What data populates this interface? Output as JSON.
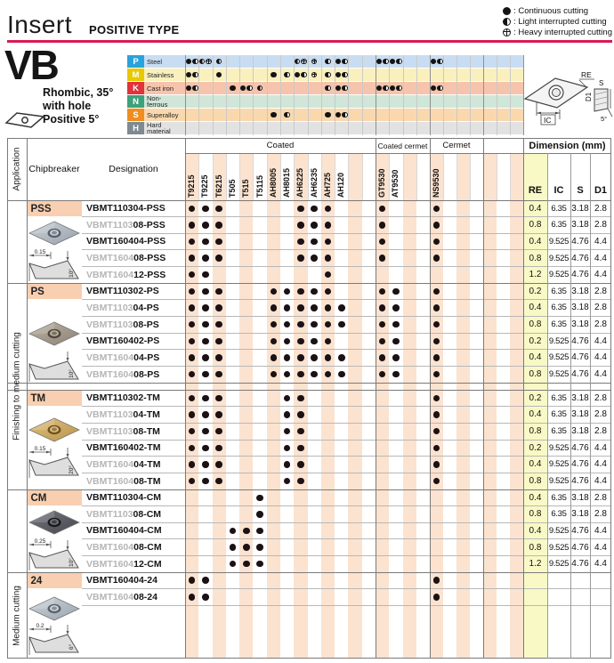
{
  "page": {
    "title": "Insert",
    "subtitle": "POSITIVE TYPE",
    "legend": [
      {
        "symbol": "f",
        "label": ": Continuous cutting"
      },
      {
        "symbol": "c",
        "label": ": Light interrupted cutting"
      },
      {
        "symbol": "h",
        "label": ": Heavy interrupted cutting"
      }
    ]
  },
  "colors": {
    "accent": "#d81b54",
    "stripe": "#fbe3d0",
    "section_cell": "#f8cfb0",
    "re_column": "#f9f9c6",
    "dot": "#1a1215"
  },
  "product": {
    "code": "VB",
    "shape_desc": [
      "Rhombic, 35°",
      "with hole",
      "Positive 5°"
    ]
  },
  "materials": {
    "rows": [
      {
        "code": "P",
        "name": "Steel",
        "badge_color": "#29a3dc",
        "row_color": "#c9ddf2",
        "marks": {
          "0": "fc",
          "1": "ch",
          "2": "c",
          "8": "ch",
          "9": "h",
          "10": "c",
          "11": "fc",
          "14": "fc",
          "15": "fc",
          "18": "fc"
        }
      },
      {
        "code": "M",
        "name": "Stainless",
        "badge_color": "#e8c800",
        "row_color": "#faf0bd",
        "marks": {
          "0": "fc",
          "2": "f",
          "6": "f",
          "7": "c",
          "8": "fc",
          "9": "h",
          "10": "c",
          "11": "fc"
        }
      },
      {
        "code": "K",
        "name": "Cast iron",
        "badge_color": "#e0333c",
        "row_color": "#f6c4ac",
        "marks": {
          "0": "fc",
          "3": "f",
          "4": "fc",
          "5": "c",
          "10": "c",
          "11": "fc",
          "14": "fc",
          "15": "fc",
          "18": "fc"
        }
      },
      {
        "code": "N",
        "name": "Non-\nferrous",
        "badge_color": "#3da17c",
        "row_color": "#cfe6d8",
        "marks": {}
      },
      {
        "code": "S",
        "name": "Superalloy",
        "badge_color": "#ef8e1f",
        "row_color": "#fad8ae",
        "marks": {
          "6": "f",
          "7": "c",
          "10": "f",
          "11": "fc"
        }
      },
      {
        "code": "H",
        "name": "Hard\nmaterial",
        "badge_color": "#7e8a92",
        "row_color": "#e2e2e2",
        "marks": {}
      }
    ]
  },
  "grades": {
    "groups": [
      {
        "label": "Coated",
        "span": 14
      },
      {
        "label": "Coated cermet",
        "span": 4
      },
      {
        "label": "Cermet",
        "span": 4
      },
      {
        "label": "",
        "span": 3
      }
    ],
    "columns": [
      "T9215",
      "T9225",
      "T6215",
      "T505",
      "T515",
      "T5115",
      "AH8005",
      "AH8015",
      "AH6225",
      "AH6235",
      "AH725",
      "AH120",
      "",
      "",
      "GT9530",
      "AT9530",
      "",
      "",
      "NS9530",
      "",
      "",
      "",
      "",
      "",
      ""
    ]
  },
  "dimension": {
    "label": "Dimension (mm)",
    "headers": [
      "RE",
      "IC",
      "S",
      "D1"
    ]
  },
  "table": {
    "application_header": "Application",
    "chipbreaker_header": "Chipbreaker",
    "designation_header": "Designation",
    "applications": [
      {
        "label": "Finishing to medium cutting",
        "section_span": [
          0,
          3
        ]
      },
      {
        "label": "Medium cutting",
        "section_span": [
          4,
          4
        ]
      }
    ],
    "sections": [
      {
        "name": "PSS",
        "profile": {
          "dim": "0.15",
          "angle": "10°"
        },
        "photo": {
          "base": "#97a0aa",
          "light": "#ccd3da",
          "dark": "#58606a"
        },
        "rows": [
          {
            "pre": "",
            "suf": "VBMT110304-PSS",
            "dots": [
              0,
              1,
              2,
              8,
              9,
              10,
              14,
              18
            ],
            "dims": [
              "0.4",
              "6.35",
              "3.18",
              "2.8"
            ]
          },
          {
            "pre": "VBMT1103",
            "suf": "08-PSS",
            "dots": [
              0,
              1,
              2,
              8,
              9,
              10,
              14,
              18
            ],
            "dims": [
              "0.8",
              "6.35",
              "3.18",
              "2.8"
            ]
          },
          {
            "pre": "",
            "suf": "VBMT160404-PSS",
            "dots": [
              0,
              1,
              2,
              8,
              9,
              10,
              14,
              18
            ],
            "dims": [
              "0.4",
              "9.525",
              "4.76",
              "4.4"
            ]
          },
          {
            "pre": "VBMT1604",
            "suf": "08-PSS",
            "dots": [
              0,
              1,
              2,
              8,
              9,
              10,
              14,
              18
            ],
            "dims": [
              "0.8",
              "9.525",
              "4.76",
              "4.4"
            ]
          },
          {
            "pre": "VBMT1604",
            "suf": "12-PSS",
            "dots": [
              0,
              1,
              10
            ],
            "dims": [
              "1.2",
              "9.525",
              "4.76",
              "4.4"
            ]
          }
        ]
      },
      {
        "name": "PS",
        "profile": {
          "dim": "",
          "angle": "10°"
        },
        "photo": {
          "base": "#8a8174",
          "light": "#beb4a4",
          "dark": "#4e463c"
        },
        "rows": [
          {
            "pre": "",
            "suf": "VBMT110302-PS",
            "dots": [
              0,
              1,
              2,
              6,
              7,
              8,
              9,
              10,
              14,
              15,
              18
            ],
            "dims": [
              "0.2",
              "6.35",
              "3.18",
              "2.8"
            ]
          },
          {
            "pre": "VBMT1103",
            "suf": "04-PS",
            "dots": [
              0,
              1,
              2,
              6,
              7,
              8,
              9,
              10,
              11,
              14,
              15,
              18
            ],
            "dims": [
              "0.4",
              "6.35",
              "3.18",
              "2.8"
            ]
          },
          {
            "pre": "VBMT1103",
            "suf": "08-PS",
            "dots": [
              0,
              1,
              2,
              6,
              7,
              8,
              9,
              10,
              11,
              14,
              15,
              18
            ],
            "dims": [
              "0.8",
              "6.35",
              "3.18",
              "2.8"
            ]
          },
          {
            "pre": "",
            "suf": "VBMT160402-PS",
            "dots": [
              0,
              1,
              2,
              6,
              7,
              8,
              9,
              10,
              14,
              15,
              18
            ],
            "dims": [
              "0.2",
              "9.525",
              "4.76",
              "4.4"
            ]
          },
          {
            "pre": "VBMT1604",
            "suf": "04-PS",
            "dots": [
              0,
              1,
              2,
              6,
              7,
              8,
              9,
              10,
              11,
              14,
              15,
              18
            ],
            "dims": [
              "0.4",
              "9.525",
              "4.76",
              "4.4"
            ]
          },
          {
            "pre": "VBMT1604",
            "suf": "08-PS",
            "dots": [
              0,
              1,
              2,
              6,
              7,
              8,
              9,
              10,
              11,
              14,
              15,
              18
            ],
            "dims": [
              "0.8",
              "9.525",
              "4.76",
              "4.4"
            ]
          }
        ]
      },
      {
        "name": "TM",
        "profile": {
          "dim": "0.15",
          "angle": "20°"
        },
        "photo": {
          "base": "#b9944a",
          "light": "#e0c080",
          "dark": "#6e5220"
        },
        "rows": [
          {
            "pre": "",
            "suf": "VBMT110302-TM",
            "dots": [
              0,
              1,
              2,
              7,
              8,
              18
            ],
            "dims": [
              "0.2",
              "6.35",
              "3.18",
              "2.8"
            ]
          },
          {
            "pre": "VBMT1103",
            "suf": "04-TM",
            "dots": [
              0,
              1,
              2,
              7,
              8,
              18
            ],
            "dims": [
              "0.4",
              "6.35",
              "3.18",
              "2.8"
            ]
          },
          {
            "pre": "VBMT1103",
            "suf": "08-TM",
            "dots": [
              0,
              1,
              2,
              7,
              8,
              18
            ],
            "dims": [
              "0.8",
              "6.35",
              "3.18",
              "2.8"
            ]
          },
          {
            "pre": "",
            "suf": "VBMT160402-TM",
            "dots": [
              0,
              1,
              2,
              7,
              8,
              18
            ],
            "dims": [
              "0.2",
              "9.525",
              "4.76",
              "4.4"
            ]
          },
          {
            "pre": "VBMT1604",
            "suf": "04-TM",
            "dots": [
              0,
              1,
              2,
              7,
              8,
              18
            ],
            "dims": [
              "0.4",
              "9.525",
              "4.76",
              "4.4"
            ]
          },
          {
            "pre": "VBMT1604",
            "suf": "08-TM",
            "dots": [
              0,
              1,
              2,
              7,
              8,
              18
            ],
            "dims": [
              "0.8",
              "9.525",
              "4.76",
              "4.4"
            ]
          }
        ]
      },
      {
        "name": "CM",
        "profile": {
          "dim": "0.25",
          "angle": "10°"
        },
        "photo": {
          "base": "#46464e",
          "light": "#75757f",
          "dark": "#17171d"
        },
        "rows": [
          {
            "pre": "",
            "suf": "VBMT110304-CM",
            "dots": [
              5
            ],
            "dims": [
              "0.4",
              "6.35",
              "3.18",
              "2.8"
            ]
          },
          {
            "pre": "VBMT1103",
            "suf": "08-CM",
            "dots": [
              5
            ],
            "dims": [
              "0.8",
              "6.35",
              "3.18",
              "2.8"
            ]
          },
          {
            "pre": "",
            "suf": "VBMT160404-CM",
            "dots": [
              3,
              4,
              5
            ],
            "dims": [
              "0.4",
              "9.525",
              "4.76",
              "4.4"
            ]
          },
          {
            "pre": "VBMT1604",
            "suf": "08-CM",
            "dots": [
              3,
              4,
              5
            ],
            "dims": [
              "0.8",
              "9.525",
              "4.76",
              "4.4"
            ]
          },
          {
            "pre": "VBMT1604",
            "suf": "12-CM",
            "dots": [
              3,
              4,
              5
            ],
            "dims": [
              "1.2",
              "9.525",
              "4.76",
              "4.4"
            ]
          }
        ]
      },
      {
        "name": "24",
        "profile": {
          "dim": "0.2",
          "angle": "6°"
        },
        "photo": {
          "base": "#9aa3ab",
          "light": "#ced5dc",
          "dark": "#5a626c"
        },
        "rows": [
          {
            "pre": "",
            "suf": "VBMT160404-24",
            "dots": [
              0,
              1,
              18
            ],
            "dims": [
              "",
              "",
              "",
              ""
            ]
          },
          {
            "pre": "VBMT1604",
            "suf": "08-24",
            "dots": [
              0,
              1,
              18
            ],
            "dims": [
              "",
              "",
              "",
              ""
            ]
          }
        ]
      }
    ]
  },
  "diagram": {
    "re": "RE",
    "ic": "IC",
    "s": "S",
    "d1": "D1",
    "angle": "5°"
  }
}
